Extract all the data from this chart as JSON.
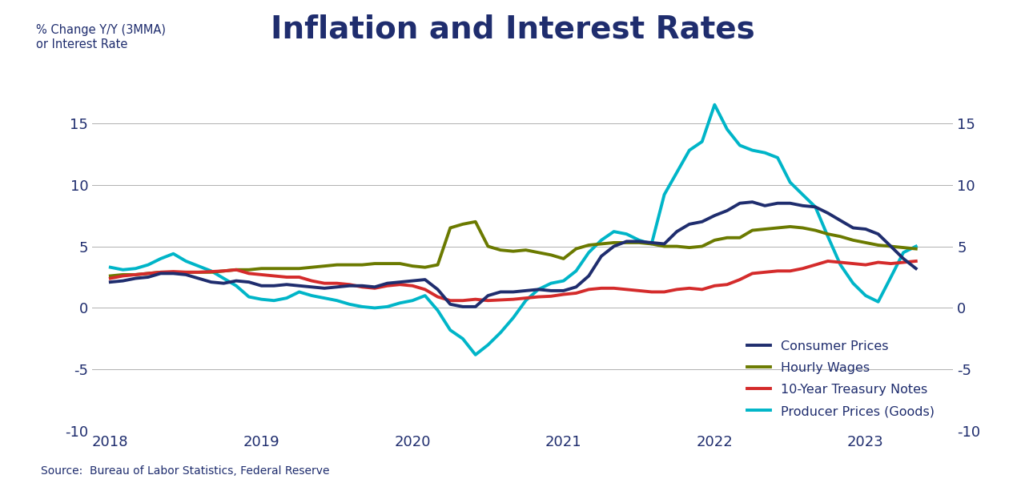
{
  "title": "Inflation and Interest Rates",
  "title_fontsize": 28,
  "title_fontweight": "bold",
  "title_color": "#1f2d6e",
  "ylabel_left": "% Change Y/Y (3MMA)\nor Interest Rate",
  "ylabel_color": "#1f2d6e",
  "source": "Source:  Bureau of Labor Statistics, Federal Reserve",
  "ylim": [
    -10,
    18
  ],
  "yticks": [
    -10,
    -5,
    0,
    5,
    10,
    15
  ],
  "ytick_labels": [
    "-10",
    "-5",
    "0",
    "5",
    "10",
    "15"
  ],
  "background_color": "#ffffff",
  "grid_color": "#b0b0b0",
  "xticks": [
    2018,
    2019,
    2020,
    2021,
    2022,
    2023
  ],
  "xlim": [
    2017.88,
    2023.58
  ],
  "legend_fontsize": 11.5,
  "consumer_prices_label": "Consumer Prices",
  "consumer_prices_color": "#1f2d6e",
  "consumer_prices_lw": 2.8,
  "consumer_prices_x": [
    2018.0,
    2018.083,
    2018.167,
    2018.25,
    2018.333,
    2018.417,
    2018.5,
    2018.583,
    2018.667,
    2018.75,
    2018.833,
    2018.917,
    2019.0,
    2019.083,
    2019.167,
    2019.25,
    2019.333,
    2019.417,
    2019.5,
    2019.583,
    2019.667,
    2019.75,
    2019.833,
    2019.917,
    2020.0,
    2020.083,
    2020.167,
    2020.25,
    2020.333,
    2020.417,
    2020.5,
    2020.583,
    2020.667,
    2020.75,
    2020.833,
    2020.917,
    2021.0,
    2021.083,
    2021.167,
    2021.25,
    2021.333,
    2021.417,
    2021.5,
    2021.583,
    2021.667,
    2021.75,
    2021.833,
    2021.917,
    2022.0,
    2022.083,
    2022.167,
    2022.25,
    2022.333,
    2022.417,
    2022.5,
    2022.583,
    2022.667,
    2022.75,
    2022.833,
    2022.917,
    2023.0,
    2023.083,
    2023.167,
    2023.25,
    2023.333
  ],
  "consumer_prices_y": [
    2.1,
    2.2,
    2.4,
    2.5,
    2.8,
    2.8,
    2.7,
    2.4,
    2.1,
    2.0,
    2.2,
    2.1,
    1.8,
    1.8,
    1.9,
    1.8,
    1.7,
    1.6,
    1.7,
    1.8,
    1.8,
    1.7,
    2.0,
    2.1,
    2.2,
    2.3,
    1.5,
    0.3,
    0.1,
    0.1,
    1.0,
    1.3,
    1.3,
    1.4,
    1.5,
    1.4,
    1.4,
    1.7,
    2.6,
    4.2,
    5.0,
    5.4,
    5.4,
    5.3,
    5.2,
    6.2,
    6.8,
    7.0,
    7.5,
    7.9,
    8.5,
    8.6,
    8.3,
    8.5,
    8.5,
    8.3,
    8.2,
    7.7,
    7.1,
    6.5,
    6.4,
    6.0,
    5.0,
    4.0,
    3.2
  ],
  "hourly_wages_label": "Hourly Wages",
  "hourly_wages_color": "#6b7a00",
  "hourly_wages_lw": 2.8,
  "hourly_wages_x": [
    2018.0,
    2018.083,
    2018.167,
    2018.25,
    2018.333,
    2018.417,
    2018.5,
    2018.583,
    2018.667,
    2018.75,
    2018.833,
    2018.917,
    2019.0,
    2019.083,
    2019.167,
    2019.25,
    2019.333,
    2019.417,
    2019.5,
    2019.583,
    2019.667,
    2019.75,
    2019.833,
    2019.917,
    2020.0,
    2020.083,
    2020.167,
    2020.25,
    2020.333,
    2020.417,
    2020.5,
    2020.583,
    2020.667,
    2020.75,
    2020.833,
    2020.917,
    2021.0,
    2021.083,
    2021.167,
    2021.25,
    2021.333,
    2021.417,
    2021.5,
    2021.583,
    2021.667,
    2021.75,
    2021.833,
    2021.917,
    2022.0,
    2022.083,
    2022.167,
    2022.25,
    2022.333,
    2022.417,
    2022.5,
    2022.583,
    2022.667,
    2022.75,
    2022.833,
    2022.917,
    2023.0,
    2023.083,
    2023.167,
    2023.25,
    2023.333
  ],
  "hourly_wages_y": [
    2.6,
    2.7,
    2.7,
    2.8,
    2.9,
    2.9,
    2.9,
    2.9,
    2.9,
    3.0,
    3.1,
    3.1,
    3.2,
    3.2,
    3.2,
    3.2,
    3.3,
    3.4,
    3.5,
    3.5,
    3.5,
    3.6,
    3.6,
    3.6,
    3.4,
    3.3,
    3.5,
    6.5,
    6.8,
    7.0,
    5.0,
    4.7,
    4.6,
    4.7,
    4.5,
    4.3,
    4.0,
    4.8,
    5.1,
    5.2,
    5.3,
    5.3,
    5.3,
    5.2,
    5.0,
    5.0,
    4.9,
    5.0,
    5.5,
    5.7,
    5.7,
    6.3,
    6.4,
    6.5,
    6.6,
    6.5,
    6.3,
    6.0,
    5.8,
    5.5,
    5.3,
    5.1,
    5.0,
    4.9,
    4.8
  ],
  "treasury_label": "10-Year Treasury Notes",
  "treasury_color": "#d42b2b",
  "treasury_lw": 2.8,
  "treasury_x": [
    2018.0,
    2018.083,
    2018.167,
    2018.25,
    2018.333,
    2018.417,
    2018.5,
    2018.583,
    2018.667,
    2018.75,
    2018.833,
    2018.917,
    2019.0,
    2019.083,
    2019.167,
    2019.25,
    2019.333,
    2019.417,
    2019.5,
    2019.583,
    2019.667,
    2019.75,
    2019.833,
    2019.917,
    2020.0,
    2020.083,
    2020.167,
    2020.25,
    2020.333,
    2020.417,
    2020.5,
    2020.583,
    2020.667,
    2020.75,
    2020.833,
    2020.917,
    2021.0,
    2021.083,
    2021.167,
    2021.25,
    2021.333,
    2021.417,
    2021.5,
    2021.583,
    2021.667,
    2021.75,
    2021.833,
    2021.917,
    2022.0,
    2022.083,
    2022.167,
    2022.25,
    2022.333,
    2022.417,
    2022.5,
    2022.583,
    2022.667,
    2022.75,
    2022.833,
    2022.917,
    2023.0,
    2023.083,
    2023.167,
    2023.25,
    2023.333
  ],
  "treasury_y": [
    2.4,
    2.6,
    2.7,
    2.8,
    2.9,
    2.95,
    2.9,
    2.9,
    2.95,
    3.0,
    3.1,
    2.8,
    2.7,
    2.6,
    2.5,
    2.5,
    2.2,
    2.0,
    2.0,
    1.9,
    1.7,
    1.6,
    1.8,
    1.9,
    1.8,
    1.5,
    0.9,
    0.6,
    0.6,
    0.7,
    0.6,
    0.65,
    0.7,
    0.8,
    0.9,
    0.95,
    1.1,
    1.2,
    1.5,
    1.6,
    1.6,
    1.5,
    1.4,
    1.3,
    1.3,
    1.5,
    1.6,
    1.5,
    1.8,
    1.9,
    2.3,
    2.8,
    2.9,
    3.0,
    3.0,
    3.2,
    3.5,
    3.8,
    3.7,
    3.6,
    3.5,
    3.7,
    3.6,
    3.7,
    3.8
  ],
  "producer_label": "Producer Prices (Goods)",
  "producer_color": "#00b5c8",
  "producer_lw": 2.8,
  "producer_x": [
    2018.0,
    2018.083,
    2018.167,
    2018.25,
    2018.333,
    2018.417,
    2018.5,
    2018.583,
    2018.667,
    2018.75,
    2018.833,
    2018.917,
    2019.0,
    2019.083,
    2019.167,
    2019.25,
    2019.333,
    2019.417,
    2019.5,
    2019.583,
    2019.667,
    2019.75,
    2019.833,
    2019.917,
    2020.0,
    2020.083,
    2020.167,
    2020.25,
    2020.333,
    2020.417,
    2020.5,
    2020.583,
    2020.667,
    2020.75,
    2020.833,
    2020.917,
    2021.0,
    2021.083,
    2021.167,
    2021.25,
    2021.333,
    2021.417,
    2021.5,
    2021.583,
    2021.667,
    2021.75,
    2021.833,
    2021.917,
    2022.0,
    2022.083,
    2022.167,
    2022.25,
    2022.333,
    2022.417,
    2022.5,
    2022.583,
    2022.667,
    2022.75,
    2022.833,
    2022.917,
    2023.0,
    2023.083,
    2023.167,
    2023.25,
    2023.333
  ],
  "producer_y": [
    3.3,
    3.1,
    3.2,
    3.5,
    4.0,
    4.4,
    3.8,
    3.4,
    3.0,
    2.4,
    1.8,
    0.9,
    0.7,
    0.6,
    0.8,
    1.3,
    1.0,
    0.8,
    0.6,
    0.3,
    0.1,
    0.0,
    0.1,
    0.4,
    0.6,
    1.0,
    -0.2,
    -1.8,
    -2.5,
    -3.8,
    -3.0,
    -2.0,
    -0.8,
    0.6,
    1.5,
    2.0,
    2.2,
    3.0,
    4.5,
    5.5,
    6.2,
    6.0,
    5.5,
    5.2,
    9.2,
    11.0,
    12.8,
    13.5,
    16.5,
    14.5,
    13.2,
    12.8,
    12.6,
    12.2,
    10.2,
    9.2,
    8.2,
    5.8,
    3.5,
    2.0,
    1.0,
    0.5,
    2.5,
    4.5,
    5.0
  ]
}
